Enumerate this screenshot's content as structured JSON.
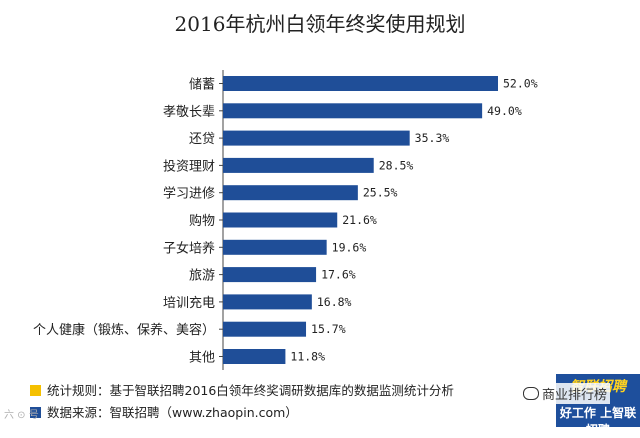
{
  "chart_data": {
    "type": "bar",
    "orientation": "horizontal",
    "title": "2016年杭州白领年终奖使用规划",
    "categories": [
      "储蓄",
      "孝敬长辈",
      "还贷",
      "投资理财",
      "学习进修",
      "购物",
      "子女培养",
      "旅游",
      "培训充电",
      "个人健康（锻炼、保养、美容）",
      "其他"
    ],
    "values": [
      52.0,
      49.0,
      35.3,
      28.5,
      25.5,
      21.6,
      19.6,
      17.6,
      16.8,
      15.7,
      11.8
    ],
    "value_labels": [
      "52.0%",
      "49.0%",
      "35.3%",
      "28.5%",
      "25.5%",
      "21.6%",
      "19.6%",
      "17.6%",
      "16.8%",
      "15.7%",
      "11.8%"
    ],
    "xlim": [
      0,
      52.0
    ],
    "xlabel": "",
    "ylabel": "",
    "bar_color": "#1f4e98"
  },
  "footnotes": {
    "method_label": "统计规则：基于智联招聘2016白领年终奖调研数据库的数据监测统计分析",
    "method_color": "#f5c000",
    "source_label": "数据来源：智联招聘（www.zhaopin.com）",
    "source_color": "#1f4e98"
  },
  "watermark": {
    "wechat_text": "商业排行榜",
    "left_text": "六 ⊙ 号"
  },
  "logo": {
    "name": "智联招聘",
    "slogan": "好工作 上智联招聘"
  }
}
